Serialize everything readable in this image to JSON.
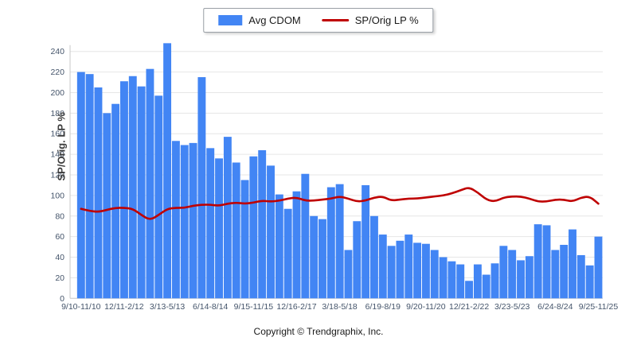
{
  "legend": {
    "items": [
      {
        "label": "Avg CDOM",
        "swatch": "bar",
        "color": "#4285f4"
      },
      {
        "label": "SP/Orig LP %",
        "swatch": "line",
        "color": "#bf0000"
      }
    ]
  },
  "y_axis_title": "SP/Orig. LP %",
  "footer": {
    "copyright": "Copyright © Trendgraphix, Inc."
  },
  "colors": {
    "bar": "#4285f4",
    "line": "#bf0000",
    "grid": "#e6e6e6",
    "axis": "#c8c8c8",
    "tick_text": "#44546a"
  },
  "chart_data": {
    "type": "bar",
    "subtype": "bar-with-line-overlay",
    "title": "",
    "xlabel": "",
    "ylabel": "SP/Orig. LP %",
    "grid": "horizontal",
    "legend_position": "top-center",
    "y_axis": {
      "min": 0,
      "max": 240,
      "step": 20,
      "tick_labels": [
        0,
        20,
        40,
        60,
        80,
        100,
        120,
        140,
        160,
        180,
        200,
        220,
        240
      ]
    },
    "x_tick_every": 5,
    "x_tick_labels": [
      "9/10-11/10",
      "12/11-2/12",
      "3/13-5/13",
      "6/14-8/14",
      "9/15-11/15",
      "12/16-2/17",
      "3/18-5/18",
      "6/19-8/19",
      "9/20-11/20",
      "12/21-2/22",
      "3/23-5/23",
      "6/24-8/24",
      "9/25-11/25"
    ],
    "series": [
      {
        "name": "Avg CDOM",
        "type": "bar",
        "color": "#4285f4",
        "values": [
          220,
          218,
          205,
          180,
          189,
          211,
          216,
          206,
          223,
          197,
          248,
          153,
          149,
          151,
          215,
          146,
          136,
          157,
          132,
          115,
          138,
          144,
          129,
          101,
          87,
          104,
          121,
          80,
          77,
          108,
          111,
          47,
          75,
          110,
          80,
          62,
          51,
          56,
          62,
          54,
          53,
          47,
          40,
          36,
          33,
          17,
          33,
          23,
          34,
          51,
          47,
          37,
          41,
          72,
          71,
          47,
          52,
          67,
          42,
          32,
          60
        ]
      },
      {
        "name": "SP/Orig LP %",
        "type": "line",
        "color": "#bf0000",
        "values": [
          87,
          85,
          84,
          86,
          88,
          88,
          87,
          81,
          76,
          81,
          87,
          88,
          88,
          90,
          91,
          91,
          90,
          92,
          93,
          92,
          93,
          95,
          94,
          95,
          97,
          98,
          95,
          95,
          96,
          97,
          99,
          97,
          94,
          95,
          98,
          99,
          95,
          96,
          97,
          97,
          98,
          99,
          100,
          102,
          105,
          108,
          103,
          96,
          94,
          98,
          99,
          99,
          97,
          94,
          94,
          96,
          96,
          94,
          98,
          99,
          92
        ]
      }
    ]
  }
}
